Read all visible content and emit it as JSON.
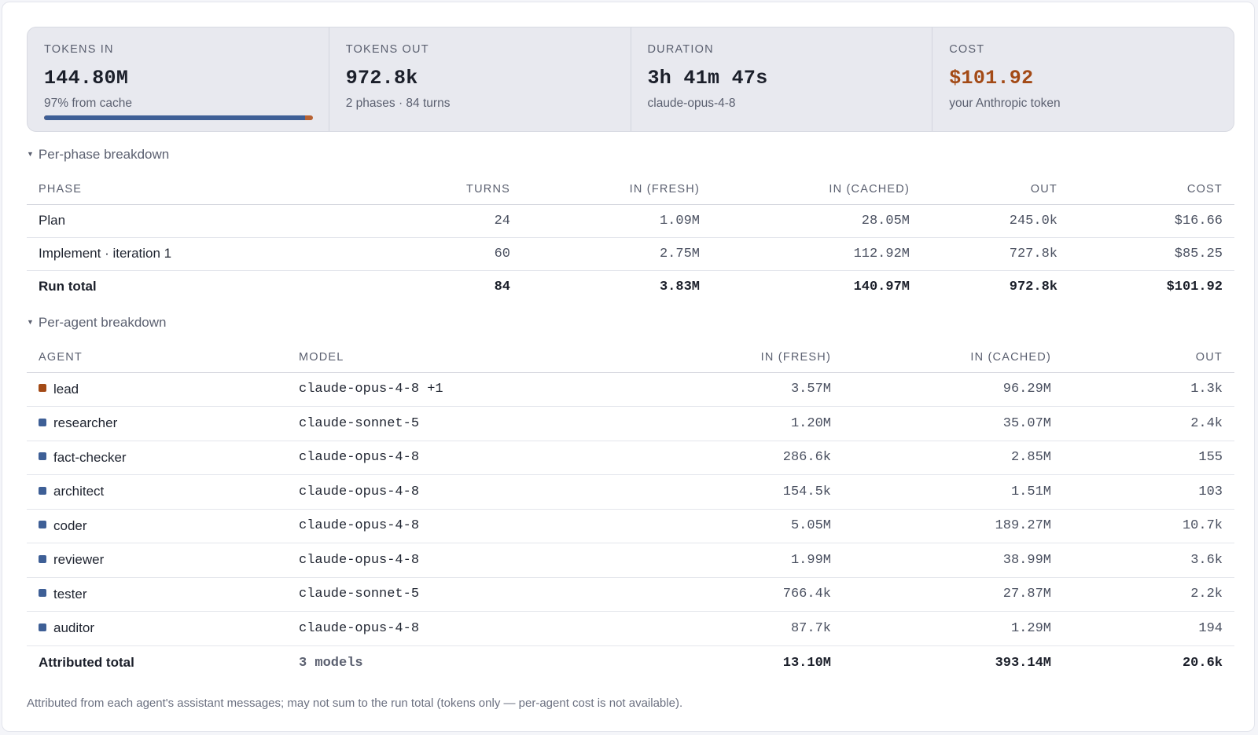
{
  "stats": {
    "tokens_in": {
      "label": "TOKENS IN",
      "value": "144.80M",
      "sub": "97% from cache",
      "cache_fraction": 0.97
    },
    "tokens_out": {
      "label": "TOKENS OUT",
      "value": "972.8k",
      "sub": "2 phases · 84 turns"
    },
    "duration": {
      "label": "DURATION",
      "value": "3h 41m 47s",
      "sub": "claude-opus-4-8"
    },
    "cost": {
      "label": "COST",
      "value": "$101.92",
      "sub": "your Anthropic token"
    }
  },
  "phase_section": {
    "title": "Per-phase breakdown",
    "headers": [
      "PHASE",
      "TURNS",
      "IN (FRESH)",
      "IN (CACHED)",
      "OUT",
      "COST"
    ],
    "rows": [
      [
        "Plan",
        "24",
        "1.09M",
        "28.05M",
        "245.0k",
        "$16.66"
      ],
      [
        "Implement · iteration 1",
        "60",
        "2.75M",
        "112.92M",
        "727.8k",
        "$85.25"
      ]
    ],
    "total": [
      "Run total",
      "84",
      "3.83M",
      "140.97M",
      "972.8k",
      "$101.92"
    ]
  },
  "agent_section": {
    "title": "Per-agent breakdown",
    "headers": [
      "AGENT",
      "MODEL",
      "IN (FRESH)",
      "IN (CACHED)",
      "OUT"
    ],
    "rows": [
      {
        "agent": "lead",
        "color": "#a34a16",
        "model": "claude-opus-4-8 +1",
        "in_fresh": "3.57M",
        "in_cached": "96.29M",
        "out": "1.3k"
      },
      {
        "agent": "researcher",
        "color": "#3e5f96",
        "model": "claude-sonnet-5",
        "in_fresh": "1.20M",
        "in_cached": "35.07M",
        "out": "2.4k"
      },
      {
        "agent": "fact-checker",
        "color": "#3e5f96",
        "model": "claude-opus-4-8",
        "in_fresh": "286.6k",
        "in_cached": "2.85M",
        "out": "155"
      },
      {
        "agent": "architect",
        "color": "#3e5f96",
        "model": "claude-opus-4-8",
        "in_fresh": "154.5k",
        "in_cached": "1.51M",
        "out": "103"
      },
      {
        "agent": "coder",
        "color": "#3e5f96",
        "model": "claude-opus-4-8",
        "in_fresh": "5.05M",
        "in_cached": "189.27M",
        "out": "10.7k"
      },
      {
        "agent": "reviewer",
        "color": "#3e5f96",
        "model": "claude-opus-4-8",
        "in_fresh": "1.99M",
        "in_cached": "38.99M",
        "out": "3.6k"
      },
      {
        "agent": "tester",
        "color": "#3e5f96",
        "model": "claude-sonnet-5",
        "in_fresh": "766.4k",
        "in_cached": "27.87M",
        "out": "2.2k"
      },
      {
        "agent": "auditor",
        "color": "#3e5f96",
        "model": "claude-opus-4-8",
        "in_fresh": "87.7k",
        "in_cached": "1.29M",
        "out": "194"
      }
    ],
    "total": {
      "agent": "Attributed total",
      "model": "3 models",
      "in_fresh": "13.10M",
      "in_cached": "393.14M",
      "out": "20.6k"
    }
  },
  "footnote": "Attributed from each agent's assistant messages; may not sum to the run total (tokens only — per-agent cost is not available).",
  "colors": {
    "accent_cost": "#a34a16",
    "bar_blue": "#3e5f96"
  }
}
